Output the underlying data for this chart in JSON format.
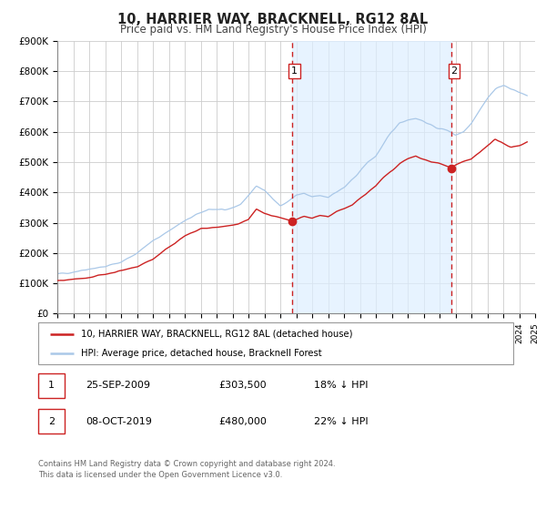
{
  "title": "10, HARRIER WAY, BRACKNELL, RG12 8AL",
  "subtitle": "Price paid vs. HM Land Registry's House Price Index (HPI)",
  "ylim": [
    0,
    900000
  ],
  "yticks": [
    0,
    100000,
    200000,
    300000,
    400000,
    500000,
    600000,
    700000,
    800000,
    900000
  ],
  "ytick_labels": [
    "£0",
    "£100K",
    "£200K",
    "£300K",
    "£400K",
    "£500K",
    "£600K",
    "£700K",
    "£800K",
    "£900K"
  ],
  "hpi_color": "#aac8e8",
  "price_color": "#cc2222",
  "marker_color": "#cc2222",
  "bg_color": "#ffffff",
  "plot_bg": "#ffffff",
  "grid_color": "#cccccc",
  "span_color": "#ddeeff",
  "sale1_x": 2009.73,
  "sale1_y": 303500,
  "sale2_x": 2019.77,
  "sale2_y": 480000,
  "legend_line1": "10, HARRIER WAY, BRACKNELL, RG12 8AL (detached house)",
  "legend_line2": "HPI: Average price, detached house, Bracknell Forest",
  "table_row1": [
    "1",
    "25-SEP-2009",
    "£303,500",
    "18% ↓ HPI"
  ],
  "table_row2": [
    "2",
    "08-OCT-2019",
    "£480,000",
    "22% ↓ HPI"
  ],
  "footnote": "Contains HM Land Registry data © Crown copyright and database right 2024.\nThis data is licensed under the Open Government Licence v3.0.",
  "xmin": 1995,
  "xmax": 2025,
  "hpi_keypoints": [
    [
      1995.0,
      130000
    ],
    [
      1996.0,
      138000
    ],
    [
      1997.0,
      148000
    ],
    [
      1998.0,
      155000
    ],
    [
      1999.0,
      170000
    ],
    [
      2000.0,
      200000
    ],
    [
      2001.0,
      240000
    ],
    [
      2002.5,
      290000
    ],
    [
      2003.5,
      320000
    ],
    [
      2004.5,
      345000
    ],
    [
      2005.5,
      340000
    ],
    [
      2006.5,
      360000
    ],
    [
      2007.5,
      420000
    ],
    [
      2008.0,
      410000
    ],
    [
      2008.5,
      380000
    ],
    [
      2009.0,
      355000
    ],
    [
      2009.5,
      370000
    ],
    [
      2010.0,
      390000
    ],
    [
      2010.5,
      395000
    ],
    [
      2011.0,
      385000
    ],
    [
      2011.5,
      390000
    ],
    [
      2012.0,
      385000
    ],
    [
      2012.5,
      400000
    ],
    [
      2013.0,
      415000
    ],
    [
      2013.5,
      440000
    ],
    [
      2014.0,
      470000
    ],
    [
      2014.5,
      500000
    ],
    [
      2015.0,
      520000
    ],
    [
      2015.5,
      560000
    ],
    [
      2016.0,
      600000
    ],
    [
      2016.5,
      630000
    ],
    [
      2017.0,
      640000
    ],
    [
      2017.5,
      645000
    ],
    [
      2018.0,
      635000
    ],
    [
      2018.5,
      620000
    ],
    [
      2019.0,
      610000
    ],
    [
      2019.5,
      605000
    ],
    [
      2020.0,
      590000
    ],
    [
      2020.5,
      600000
    ],
    [
      2021.0,
      630000
    ],
    [
      2021.5,
      670000
    ],
    [
      2022.0,
      710000
    ],
    [
      2022.5,
      740000
    ],
    [
      2023.0,
      755000
    ],
    [
      2023.5,
      740000
    ],
    [
      2024.0,
      730000
    ],
    [
      2024.5,
      720000
    ]
  ],
  "price_keypoints": [
    [
      1995.0,
      108000
    ],
    [
      1996.0,
      112000
    ],
    [
      1997.0,
      120000
    ],
    [
      1998.0,
      130000
    ],
    [
      1999.0,
      142000
    ],
    [
      2000.0,
      155000
    ],
    [
      2001.0,
      180000
    ],
    [
      2002.0,
      220000
    ],
    [
      2003.0,
      255000
    ],
    [
      2004.0,
      280000
    ],
    [
      2005.0,
      285000
    ],
    [
      2006.0,
      290000
    ],
    [
      2007.0,
      310000
    ],
    [
      2007.5,
      345000
    ],
    [
      2008.0,
      330000
    ],
    [
      2009.73,
      303500
    ],
    [
      2010.0,
      310000
    ],
    [
      2010.5,
      320000
    ],
    [
      2011.0,
      315000
    ],
    [
      2011.5,
      325000
    ],
    [
      2012.0,
      320000
    ],
    [
      2012.5,
      335000
    ],
    [
      2013.0,
      345000
    ],
    [
      2013.5,
      360000
    ],
    [
      2014.0,
      380000
    ],
    [
      2014.5,
      400000
    ],
    [
      2015.0,
      420000
    ],
    [
      2015.5,
      450000
    ],
    [
      2016.0,
      470000
    ],
    [
      2016.5,
      495000
    ],
    [
      2017.0,
      510000
    ],
    [
      2017.5,
      520000
    ],
    [
      2018.0,
      510000
    ],
    [
      2018.5,
      500000
    ],
    [
      2019.0,
      495000
    ],
    [
      2019.77,
      480000
    ],
    [
      2020.0,
      490000
    ],
    [
      2020.5,
      500000
    ],
    [
      2021.0,
      510000
    ],
    [
      2021.5,
      530000
    ],
    [
      2022.0,
      555000
    ],
    [
      2022.5,
      575000
    ],
    [
      2023.0,
      560000
    ],
    [
      2023.5,
      550000
    ],
    [
      2024.0,
      555000
    ],
    [
      2024.5,
      565000
    ]
  ]
}
